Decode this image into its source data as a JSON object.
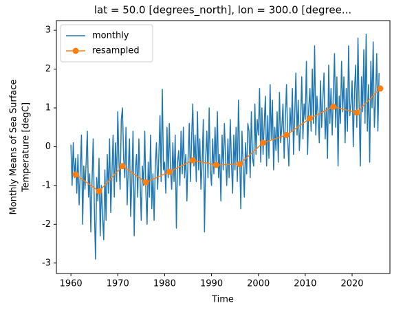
{
  "chart_data": {
    "type": "line",
    "title": "lat = 50.0 [degrees_north], lon = 300.0 [degree...",
    "xlabel": "Time",
    "ylabel": [
      "Monthly Means of Sea Surface",
      "Temperature [degC]"
    ],
    "xlim": [
      1956.9,
      2028.07
    ],
    "ylim": [
      -3.27,
      3.25
    ],
    "xticks": [
      1960,
      1970,
      1980,
      1990,
      2000,
      2010,
      2020
    ],
    "yticks": [
      -3,
      -2,
      -1,
      0,
      1,
      2,
      3
    ],
    "legend": "upper left",
    "series": [
      {
        "name": "monthly",
        "color": "#1f77b4",
        "marker": false,
        "x": [
          1960,
          1960.25,
          1960.5,
          1960.75,
          1961,
          1961.25,
          1961.5,
          1961.75,
          1962,
          1962.25,
          1962.5,
          1962.75,
          1963,
          1963.25,
          1963.5,
          1963.75,
          1964,
          1964.25,
          1964.5,
          1964.75,
          1965,
          1965.25,
          1965.5,
          1965.75,
          1966,
          1966.25,
          1966.5,
          1966.75,
          1967,
          1967.25,
          1967.5,
          1967.75,
          1968,
          1968.25,
          1968.5,
          1968.75,
          1969,
          1969.25,
          1969.5,
          1969.75,
          1970,
          1970.25,
          1970.5,
          1970.75,
          1971,
          1971.25,
          1971.5,
          1971.75,
          1972,
          1972.25,
          1972.5,
          1972.75,
          1973,
          1973.25,
          1973.5,
          1973.75,
          1974,
          1974.25,
          1974.5,
          1974.75,
          1975,
          1975.25,
          1975.5,
          1975.75,
          1976,
          1976.25,
          1976.5,
          1976.75,
          1977,
          1977.25,
          1977.5,
          1977.75,
          1978,
          1978.25,
          1978.5,
          1978.75,
          1979,
          1979.25,
          1979.5,
          1979.75,
          1980,
          1980.25,
          1980.5,
          1980.75,
          1981,
          1981.25,
          1981.5,
          1981.75,
          1982,
          1982.25,
          1982.5,
          1982.75,
          1983,
          1983.25,
          1983.5,
          1983.75,
          1984,
          1984.25,
          1984.5,
          1984.75,
          1985,
          1985.25,
          1985.5,
          1985.75,
          1986,
          1986.25,
          1986.5,
          1986.75,
          1987,
          1987.25,
          1987.5,
          1987.75,
          1988,
          1988.25,
          1988.5,
          1988.75,
          1989,
          1989.25,
          1989.5,
          1989.75,
          1990,
          1990.25,
          1990.5,
          1990.75,
          1991,
          1991.25,
          1991.5,
          1991.75,
          1992,
          1992.25,
          1992.5,
          1992.75,
          1993,
          1993.25,
          1993.5,
          1993.75,
          1994,
          1994.25,
          1994.5,
          1994.75,
          1995,
          1995.25,
          1995.5,
          1995.75,
          1996,
          1996.25,
          1996.5,
          1996.75,
          1997,
          1997.25,
          1997.5,
          1997.75,
          1998,
          1998.25,
          1998.5,
          1998.75,
          1999,
          1999.25,
          1999.5,
          1999.75,
          2000,
          2000.25,
          2000.5,
          2000.75,
          2001,
          2001.25,
          2001.5,
          2001.75,
          2002,
          2002.25,
          2002.5,
          2002.75,
          2003,
          2003.25,
          2003.5,
          2003.75,
          2004,
          2004.25,
          2004.5,
          2004.75,
          2005,
          2005.25,
          2005.5,
          2005.75,
          2006,
          2006.25,
          2006.5,
          2006.75,
          2007,
          2007.25,
          2007.5,
          2007.75,
          2008,
          2008.25,
          2008.5,
          2008.75,
          2009,
          2009.25,
          2009.5,
          2009.75,
          2010,
          2010.25,
          2010.5,
          2010.75,
          2011,
          2011.25,
          2011.5,
          2011.75,
          2012,
          2012.25,
          2012.5,
          2012.75,
          2013,
          2013.25,
          2013.5,
          2013.75,
          2014,
          2014.25,
          2014.5,
          2014.75,
          2015,
          2015.25,
          2015.5,
          2015.75,
          2016,
          2016.25,
          2016.5,
          2016.75,
          2017,
          2017.25,
          2017.5,
          2017.75,
          2018,
          2018.25,
          2018.5,
          2018.75,
          2019,
          2019.25,
          2019.5,
          2019.75,
          2020,
          2020.25,
          2020.5,
          2020.75,
          2021,
          2021.25,
          2021.5,
          2021.75,
          2022,
          2022.25,
          2022.5,
          2022.75,
          2023,
          2023.25,
          2023.5,
          2023.75,
          2024,
          2024.25,
          2024.5,
          2024.75,
          2025,
          2025.25,
          2025.5,
          2025.75
        ],
        "values": [
          0.05,
          -1.0,
          0.1,
          -0.8,
          -0.3,
          -1.2,
          -0.2,
          -1.5,
          -0.6,
          0.3,
          -2.0,
          -0.5,
          -1.1,
          -0.4,
          0.4,
          -1.3,
          -0.7,
          -2.2,
          -0.9,
          0.2,
          -1.6,
          -2.9,
          -0.8,
          -1.4,
          -0.3,
          -2.3,
          -1.0,
          -1.8,
          -2.4,
          -0.6,
          -1.9,
          -0.2,
          -1.2,
          0.2,
          -1.7,
          -0.7,
          0.3,
          -1.3,
          0.1,
          -0.9,
          0.9,
          -0.4,
          -1.1,
          0.7,
          1.0,
          -0.3,
          -0.8,
          0.5,
          -1.5,
          -0.5,
          0.2,
          -1.8,
          -0.9,
          0.4,
          -2.3,
          -0.6,
          -0.2,
          -1.3,
          0.2,
          -0.8,
          -1.9,
          -0.5,
          -1.0,
          0.4,
          -1.2,
          -2.0,
          -0.4,
          -1.3,
          0.3,
          -1.6,
          -0.7,
          -1.9,
          -0.5,
          0.1,
          -1.1,
          -0.3,
          0.8,
          -0.9,
          1.48,
          -0.6,
          -0.4,
          -1.2,
          0.5,
          -0.8,
          0.6,
          -0.6,
          -1.1,
          0.1,
          -0.9,
          0.3,
          -2.1,
          -0.4,
          -0.1,
          -1.0,
          0.4,
          -0.7,
          0.5,
          -0.8,
          -0.2,
          -1.4,
          -0.3,
          0.6,
          -0.9,
          0.2,
          1.1,
          -0.5,
          0.3,
          -0.9,
          0.9,
          -0.6,
          0.2,
          -1.1,
          -0.4,
          0.7,
          -2.2,
          -0.3,
          0.4,
          -0.8,
          1.0,
          -0.6,
          -1.0,
          0.2,
          -0.7,
          0.5,
          -0.5,
          0.9,
          -0.8,
          -0.2,
          -1.4,
          0.3,
          -0.6,
          0.6,
          -0.3,
          -1.0,
          0.2,
          -0.8,
          0.7,
          -0.4,
          -1.2,
          0.3,
          -0.6,
          0.5,
          -0.9,
          1.2,
          -0.2,
          -1.6,
          0.4,
          -0.5,
          -1.3,
          0.1,
          -0.7,
          0.6,
          0.4,
          -0.8,
          0.9,
          -0.3,
          -0.5,
          1.1,
          -0.2,
          0.7,
          0.3,
          1.5,
          -0.4,
          1.0,
          -0.2,
          0.6,
          1.3,
          -0.5,
          0.8,
          -0.3,
          1.6,
          0.2,
          1.2,
          -0.6,
          0.5,
          -0.1,
          0.9,
          -0.4,
          1.4,
          0.1,
          0.5,
          1.1,
          -0.3,
          0.7,
          1.6,
          0.2,
          -0.5,
          1.0,
          0.4,
          1.5,
          -0.2,
          0.8,
          1.9,
          0.3,
          1.2,
          -0.1,
          0.6,
          1.8,
          0.2,
          1.1,
          0.7,
          2.2,
          -0.2,
          1.0,
          1.5,
          0.4,
          2.0,
          0.6,
          2.6,
          0.3,
          1.3,
          0.8,
          0.1,
          1.7,
          0.5,
          1.2,
          1.9,
          0.2,
          1.0,
          -0.3,
          2.1,
          0.6,
          1.5,
          0.3,
          1.4,
          2.4,
          0.5,
          1.8,
          -0.5,
          1.3,
          0.6,
          2.2,
          0.9,
          1.8,
          0.1,
          1.5,
          0.4,
          2.6,
          0.8,
          1.1,
          1.7,
          0.0,
          1.4,
          2.1,
          0.5,
          2.8,
          1.0,
          -0.5,
          1.8,
          0.9,
          2.5,
          0.6,
          2.9,
          0.4,
          1.6,
          -0.4,
          2.2,
          1.0,
          2.7,
          0.5,
          1.2,
          2.4,
          0.4,
          1.9
        ]
      },
      {
        "name": "resampled",
        "color": "#ff7f0e",
        "marker": true,
        "x": [
          1961,
          1966,
          1971,
          1976,
          1981,
          1986,
          1991,
          1996,
          2001,
          2006,
          2011,
          2016,
          2021,
          2026
        ],
        "values": [
          -0.72,
          -1.15,
          -0.5,
          -0.92,
          -0.65,
          -0.35,
          -0.47,
          -0.45,
          0.1,
          0.3,
          0.73,
          1.03,
          0.88,
          1.5
        ]
      }
    ]
  }
}
